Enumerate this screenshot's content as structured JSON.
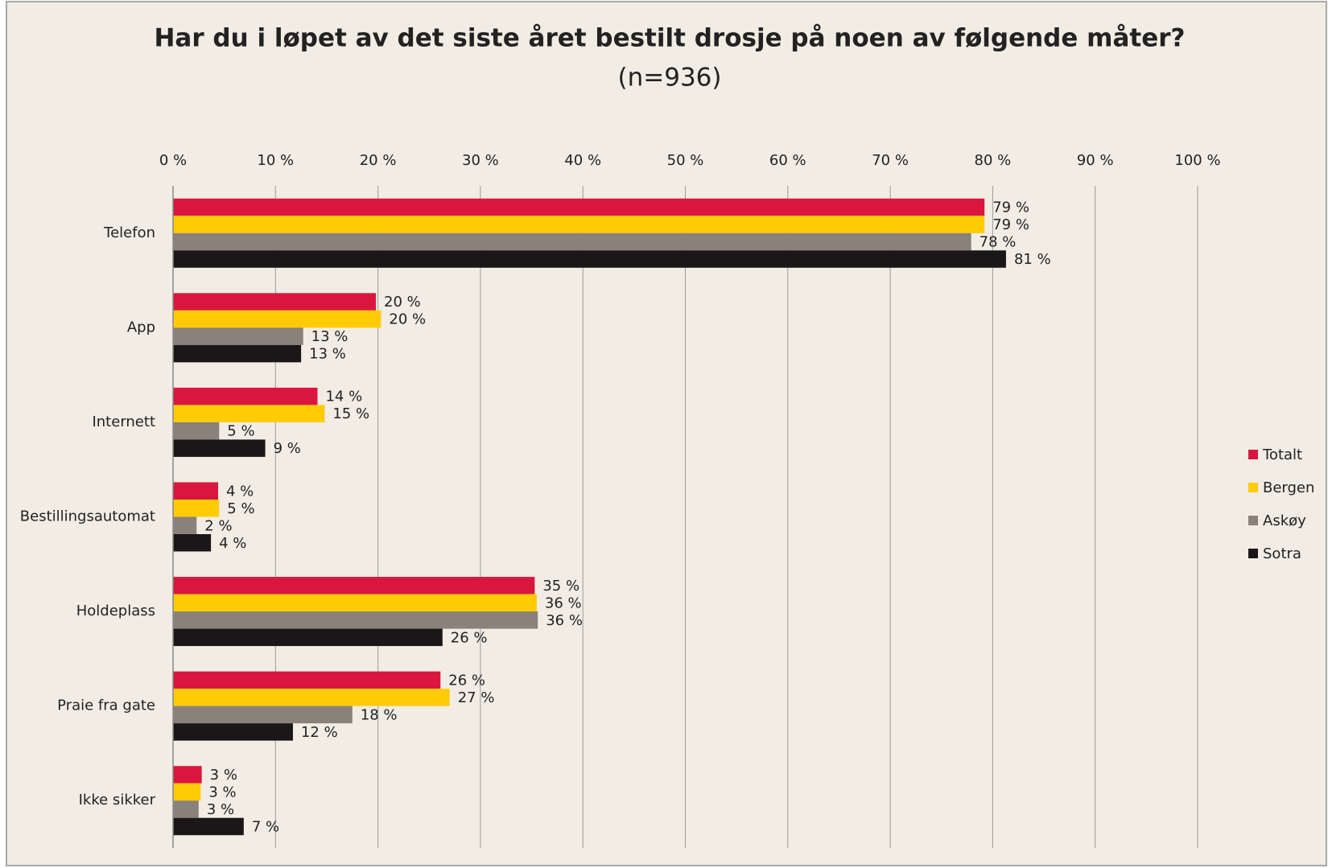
{
  "chart_data": {
    "type": "bar",
    "orientation": "horizontal",
    "title": "Har du i løpet av det siste året bestilt drosje på noen av følgende måter?",
    "subtitle": "(n=936)",
    "categories": [
      "Telefon",
      "App",
      "Internett",
      "Bestillingsautomat",
      "Holdeplass",
      "Praie fra gate",
      "Ikke sikker"
    ],
    "series": [
      {
        "name": "Totalt",
        "color": "#d9173e",
        "values": [
          79.2,
          19.8,
          14.1,
          4.4,
          35.3,
          26.1,
          2.8
        ],
        "value_labels": [
          "79 %",
          "20 %",
          "14 %",
          "4 %",
          "35 %",
          "26 %",
          "3 %"
        ]
      },
      {
        "name": "Bergen",
        "color": "#ffcb05",
        "values": [
          79.2,
          20.3,
          14.8,
          4.5,
          35.5,
          27.0,
          2.7
        ],
        "value_labels": [
          "79 %",
          "20 %",
          "15 %",
          "5 %",
          "36 %",
          "27 %",
          "3 %"
        ]
      },
      {
        "name": "Askøy",
        "color": "#8a817a",
        "values": [
          77.9,
          12.7,
          4.5,
          2.3,
          35.6,
          17.5,
          2.5
        ],
        "value_labels": [
          "78 %",
          "13 %",
          "5 %",
          "2 %",
          "36 %",
          "18 %",
          "3 %"
        ]
      },
      {
        "name": "Sotra",
        "color": "#1b1617",
        "values": [
          81.3,
          12.5,
          9.0,
          3.7,
          26.3,
          11.7,
          6.9
        ],
        "value_labels": [
          "81 %",
          "13 %",
          "9 %",
          "4 %",
          "26 %",
          "12 %",
          "7 %"
        ]
      }
    ],
    "xlim": [
      0,
      100
    ],
    "xticks": [
      {
        "value": 0,
        "label": "0 %"
      },
      {
        "value": 10,
        "label": "10 %"
      },
      {
        "value": 20,
        "label": "20 %"
      },
      {
        "value": 30,
        "label": "30 %"
      },
      {
        "value": 40,
        "label": "40 %"
      },
      {
        "value": 50,
        "label": "50 %"
      },
      {
        "value": 60,
        "label": "60 %"
      },
      {
        "value": 70,
        "label": "70 %"
      },
      {
        "value": 80,
        "label": "80 %"
      },
      {
        "value": 90,
        "label": "90 %"
      },
      {
        "value": 100,
        "label": "100 %"
      }
    ],
    "grid": true,
    "legend": "right"
  }
}
